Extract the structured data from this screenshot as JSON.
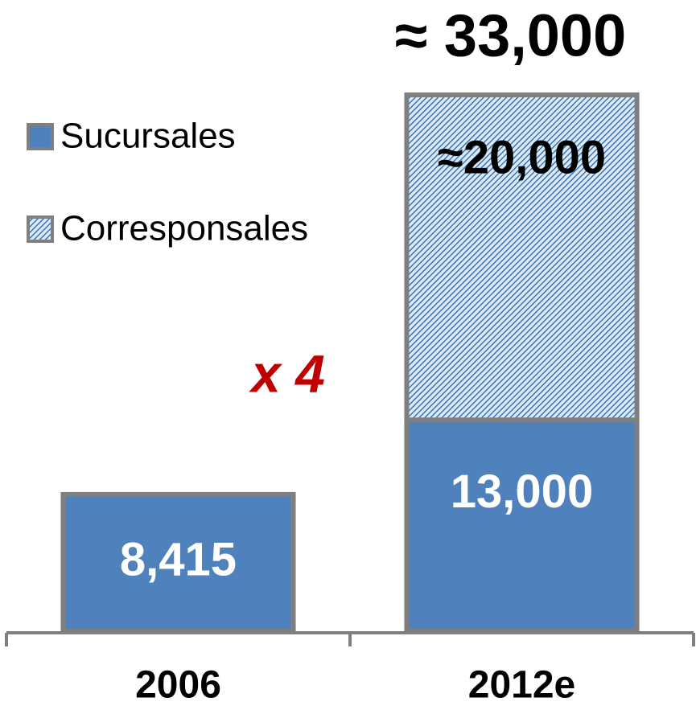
{
  "chart_data": {
    "type": "stacked_bar",
    "categories": [
      "2006",
      "2012e"
    ],
    "series": [
      {
        "name": "Sucursales",
        "color": "#4f81bd",
        "values": [
          8415,
          13000
        ],
        "value_labels": [
          "8,415",
          "13,000"
        ]
      },
      {
        "name": "Corresponsales",
        "color": "#1f5fa8",
        "pattern": "hatch",
        "values": [
          null,
          20000
        ],
        "value_labels": [
          null,
          "≈20,000"
        ]
      }
    ],
    "total_labels": [
      null,
      "≈ 33,000"
    ],
    "annotation": "x 4",
    "ylim": [
      0,
      33000
    ],
    "legend": "top-left"
  }
}
